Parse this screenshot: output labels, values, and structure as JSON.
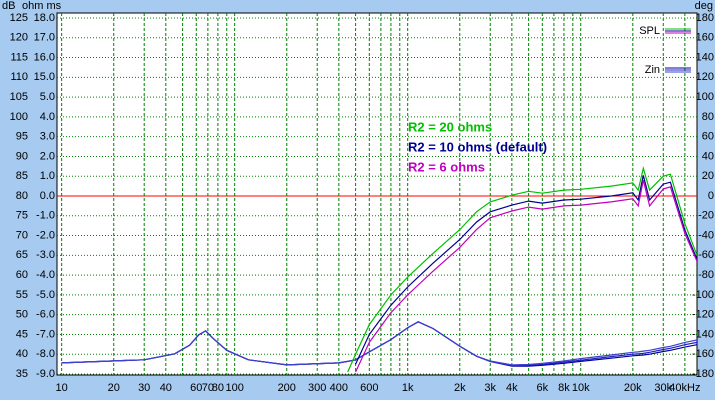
{
  "chart_data": {
    "type": "line",
    "axis_headers": {
      "left": "dB",
      "left2": "ohm ms",
      "right": "deg"
    },
    "x_log": true,
    "xlim": [
      9.4,
      47000
    ],
    "xticks": [
      10,
      20,
      30,
      40,
      60,
      70,
      80,
      100,
      200,
      300,
      400,
      600,
      {
        "value": 1000,
        "label": "1k"
      },
      {
        "value": 2000,
        "label": "2k"
      },
      {
        "value": 3000,
        "label": "3k"
      },
      {
        "value": 4000,
        "label": "4k"
      },
      {
        "value": 6000,
        "label": "6k"
      },
      {
        "value": 8000,
        "label": "8k"
      },
      {
        "value": 10000,
        "label": "10k"
      },
      {
        "value": 20000,
        "label": "20k"
      },
      {
        "value": 30000,
        "label": "30k"
      },
      {
        "value": 40000,
        "label": "40kHz"
      }
    ],
    "x_grid": [
      10,
      20,
      30,
      40,
      50,
      60,
      70,
      80,
      90,
      100,
      200,
      300,
      400,
      500,
      600,
      700,
      800,
      900,
      1000,
      2000,
      3000,
      4000,
      5000,
      6000,
      7000,
      8000,
      9000,
      10000,
      20000,
      30000,
      40000
    ],
    "ylim": [
      34.75,
      126.26
    ],
    "yticks": [
      125,
      120,
      115,
      110,
      105,
      100,
      95,
      90,
      85,
      80,
      75,
      70,
      65,
      60,
      55,
      50,
      45,
      40,
      35
    ],
    "ohm_ticks": [
      {
        "value": 18,
        "label": "18.0"
      },
      {
        "value": 17,
        "label": "17.0"
      },
      {
        "value": 16,
        "label": "16.0"
      },
      {
        "value": 15,
        "label": "15.0"
      },
      {
        "value": 5,
        "label": "5.0"
      },
      {
        "value": 4,
        "label": "4.0"
      },
      {
        "value": 3,
        "label": "3.0"
      },
      {
        "value": 2,
        "label": "2.0"
      },
      {
        "value": 1,
        "label": "1.0"
      },
      {
        "value": 0,
        "label": "0.0"
      },
      {
        "value": -1,
        "label": "-1.0"
      },
      {
        "value": -2,
        "label": "-2.0"
      },
      {
        "value": -3,
        "label": "-3.0"
      },
      {
        "value": -4,
        "label": "-4.0"
      },
      {
        "value": -5,
        "label": "-5.0"
      },
      {
        "value": -6,
        "label": "-6.0"
      },
      {
        "value": -7,
        "label": "-7.0"
      },
      {
        "value": -8,
        "label": "-8.0"
      },
      {
        "value": -9,
        "label": "-9.0"
      }
    ],
    "y2lim": [
      -181,
      185
    ],
    "y2ticks": [
      180,
      160,
      140,
      120,
      100,
      80,
      60,
      40,
      20,
      0,
      -20,
      -40,
      -60,
      -80,
      -100,
      -120,
      -140,
      -160,
      -180
    ],
    "grid": true,
    "grid_color": "#008000",
    "reference_line": {
      "value": 80,
      "color": "#ff0000"
    },
    "x": [
      10,
      30,
      45,
      55,
      62,
      68,
      75,
      90,
      120,
      200,
      400,
      450,
      500,
      600,
      800,
      1000,
      1150,
      1400,
      2000,
      2500,
      3000,
      4000,
      5000,
      6000,
      8000,
      10000,
      15000,
      20000,
      21500,
      23000,
      25000,
      30000,
      33000,
      40000,
      47000
    ],
    "series": [
      {
        "name": "R2 = 20 ohms",
        "color": "#00c000",
        "values": [
          null,
          null,
          null,
          null,
          null,
          null,
          null,
          null,
          null,
          null,
          null,
          35.5,
          40,
          47.5,
          55,
          59.5,
          62,
          65.5,
          71.5,
          76,
          78.5,
          80.2,
          81.2,
          80.7,
          81.5,
          81.7,
          82.5,
          83.3,
          81.5,
          87,
          81.5,
          85,
          85.5,
          73,
          65
        ]
      },
      {
        "name": "R2 = 10 ohms (default)",
        "color": "#000090",
        "values": [
          null,
          null,
          null,
          null,
          null,
          null,
          null,
          null,
          null,
          null,
          null,
          null,
          37.5,
          45,
          52.4,
          57,
          59.5,
          63,
          69,
          73.4,
          76,
          77.7,
          78.7,
          78.2,
          79,
          79.2,
          80,
          80.8,
          79,
          85.2,
          79,
          83,
          83.5,
          71.4,
          64
        ]
      },
      {
        "name": "R2 = 6 ohms",
        "color": "#c000c0",
        "values": [
          null,
          null,
          null,
          null,
          null,
          null,
          null,
          null,
          null,
          null,
          null,
          null,
          35.5,
          43,
          50.5,
          55,
          57.5,
          61,
          67,
          71.5,
          74.5,
          76.2,
          77.2,
          76.7,
          77.5,
          77.7,
          78.5,
          79.3,
          77.5,
          84,
          77.5,
          81.8,
          82.3,
          70.5,
          63.5
        ]
      }
    ],
    "impedance_series": [
      {
        "color": "#0000a0",
        "values": [
          37.8,
          38.6,
          40.1,
          42.3,
          44.9,
          45.9,
          44,
          41,
          38.6,
          37.3,
          37.8,
          38.2,
          38.6,
          40.6,
          43.7,
          46.7,
          48.2,
          46.5,
          42,
          39.5,
          38.2,
          37,
          37,
          37.2,
          37.7,
          38.2,
          39,
          39.6,
          39.7,
          39.8,
          40,
          40.7,
          41,
          41.8,
          42.4
        ]
      },
      {
        "color": "#2020c0",
        "values": [
          37.8,
          38.6,
          40.1,
          42.3,
          44.9,
          45.9,
          44,
          41,
          38.6,
          37.3,
          37.8,
          38.2,
          38.6,
          40.6,
          43.7,
          46.7,
          48.2,
          46.5,
          42,
          39.5,
          38.2,
          37.1,
          37.2,
          37.4,
          38,
          38.5,
          39.4,
          40,
          40.1,
          40.2,
          40.5,
          41.2,
          41.5,
          42.4,
          43
        ]
      },
      {
        "color": "#4040d0",
        "values": [
          37.8,
          38.6,
          40.1,
          42.3,
          44.9,
          45.9,
          44,
          41,
          38.6,
          37.3,
          37.8,
          38.2,
          38.6,
          40.6,
          43.7,
          46.7,
          48.2,
          46.5,
          42,
          39.5,
          38.3,
          37.3,
          37.4,
          37.7,
          38.3,
          38.9,
          39.8,
          40.5,
          40.6,
          40.8,
          41,
          41.7,
          42,
          43,
          43.6
        ]
      }
    ],
    "legend": [
      {
        "label": "SPL",
        "from": "series"
      },
      {
        "label": "Zin",
        "from": "impedance_series"
      }
    ]
  }
}
